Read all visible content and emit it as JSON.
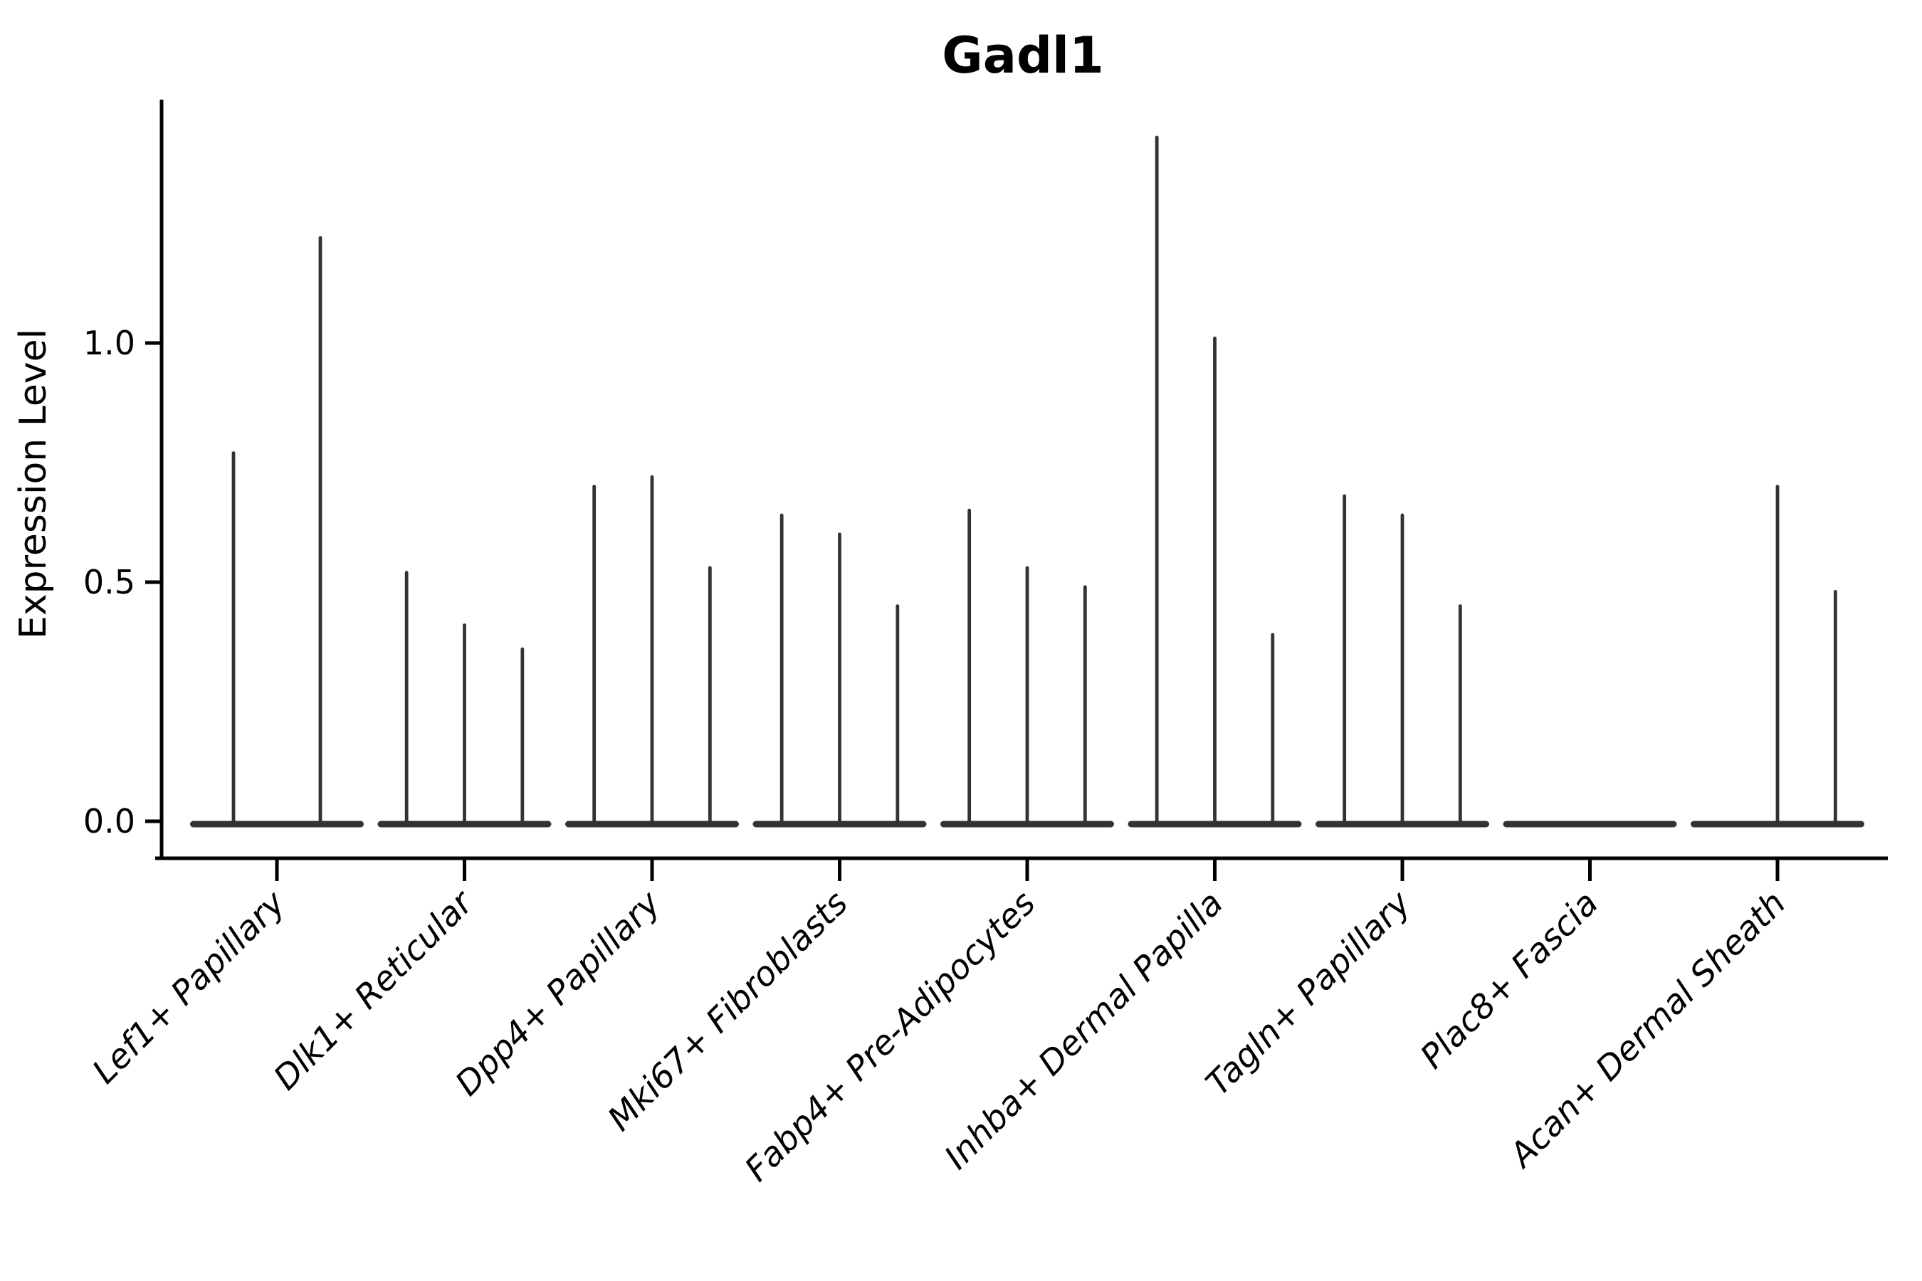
{
  "title": "Gadl1",
  "chart_data": {
    "type": "violin",
    "title": "Gadl1",
    "xlabel": "",
    "ylabel": "Expression Level",
    "ylim": [
      0,
      1.51
    ],
    "grid": false,
    "legend": "none",
    "y_ticks": [
      {
        "label": "0.0",
        "value": 0.0
      },
      {
        "label": "0.5",
        "value": 0.5
      },
      {
        "label": "1.0",
        "value": 1.0
      }
    ],
    "note": "Thin violin plot; each category holds narrow zero-width violins (spikes) rising from a flat base at 0. Values are the maximum expression reached by each spike; 0 means a flat violin with no spike.",
    "categories": [
      {
        "label": "Lef1+ Papillary",
        "violin_maxima": [
          0.77,
          1.22
        ]
      },
      {
        "label": "Dlk1+ Reticular",
        "violin_maxima": [
          0.52,
          0.41,
          0.36
        ]
      },
      {
        "label": "Dpp4+ Papillary",
        "violin_maxima": [
          0.7,
          0.72,
          0.53
        ]
      },
      {
        "label": "Mki67+ Fibroblasts",
        "violin_maxima": [
          0.64,
          0.6,
          0.45
        ]
      },
      {
        "label": "Fabp4+ Pre-Adipocytes",
        "violin_maxima": [
          0.65,
          0.53,
          0.49
        ]
      },
      {
        "label": "Inhba+ Dermal Papilla",
        "violin_maxima": [
          1.43,
          1.01,
          0.39
        ]
      },
      {
        "label": "Tagln+ Papillary",
        "violin_maxima": [
          0.68,
          0.64,
          0.45
        ]
      },
      {
        "label": "Plac8+ Fascia",
        "violin_maxima": [
          0.0,
          0.0,
          0.0
        ]
      },
      {
        "label": "Acan+ Dermal Sheath",
        "violin_maxima": [
          0.0,
          0.7,
          0.48
        ]
      }
    ],
    "colors": {
      "violin": "#333333",
      "axis": "#000000",
      "background": "#ffffff"
    }
  }
}
